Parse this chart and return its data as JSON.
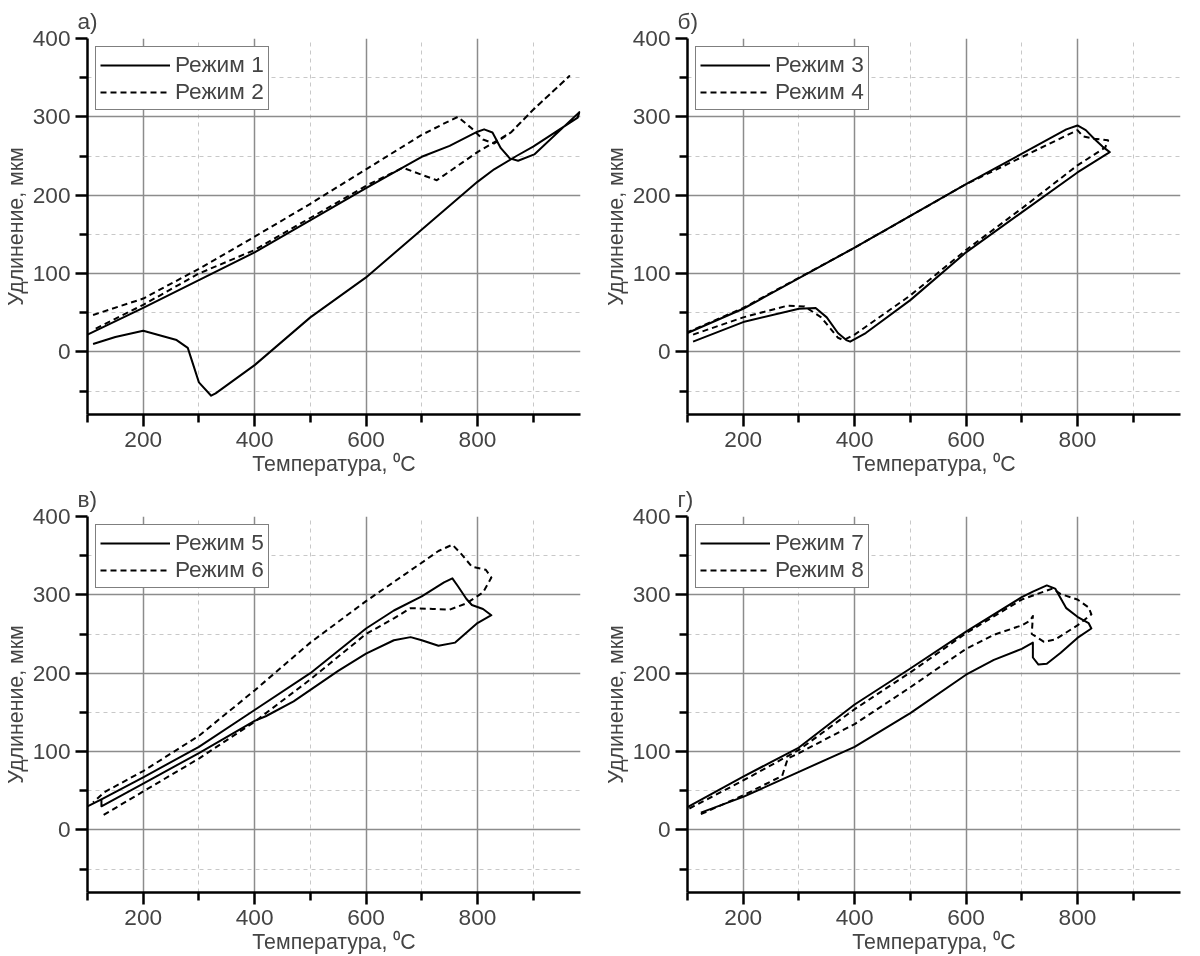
{
  "chart_data": [
    {
      "type": "line",
      "title": "а)",
      "xlabel": "Температура, ⁰C",
      "ylabel": "Удлинение, мкм",
      "xlim": [
        100,
        985
      ],
      "ylim": [
        -80,
        400
      ],
      "xticks": [
        {
          "value": 100,
          "label": null
        },
        200,
        {
          "value": 300,
          "label": null
        },
        400,
        {
          "value": 500,
          "label": null
        },
        600,
        {
          "value": 700,
          "label": null
        },
        800,
        {
          "value": 900,
          "label": null
        }
      ],
      "yticks": [
        {
          "value": -50,
          "label": null
        },
        0,
        {
          "value": 50,
          "label": null
        },
        100,
        {
          "value": 150,
          "label": null
        },
        200,
        {
          "value": 250,
          "label": null
        },
        300,
        {
          "value": 350,
          "label": null
        },
        400
      ],
      "grid": true,
      "legend": "top left",
      "series": [
        {
          "name": "Режим 1",
          "color": "#000000",
          "line_style": "solid",
          "x": [
            100,
            200,
            400,
            600,
            700,
            750,
            800,
            812,
            827,
            842,
            858,
            873,
            902,
            983,
            980,
            900,
            870,
            830,
            800,
            600,
            500,
            400,
            330,
            322,
            300,
            280,
            260,
            200,
            150,
            110
          ],
          "values": [
            22,
            56,
            127,
            209,
            249,
            263,
            281,
            284,
            280,
            260,
            247,
            244,
            252,
            306,
            299,
            262,
            250,
            233,
            217,
            95,
            44,
            -17,
            -53,
            -56,
            -39,
            5,
            15,
            27,
            19,
            10
          ]
        },
        {
          "name": "Режим 2",
          "color": "#000000",
          "line_style": "dashed",
          "x": [
            110,
            200,
            300,
            400,
            500,
            600,
            700,
            750,
            765,
            790,
            810,
            830,
            860,
            900,
            965,
            900,
            860,
            800,
            727,
            666,
            600,
            400,
            300,
            200,
            110
          ],
          "values": [
            47,
            68,
            106,
            147,
            189,
            233,
            277,
            295,
            300,
            285,
            271,
            266,
            280,
            309,
            352,
            309,
            280,
            255,
            219,
            235,
            212,
            130,
            100,
            60,
            28
          ]
        }
      ]
    },
    {
      "type": "line",
      "title": "б)",
      "xlabel": "Температура, ⁰C",
      "ylabel": "Удлинение, мкм",
      "xlim": [
        100,
        985
      ],
      "ylim": [
        -80,
        400
      ],
      "xticks": [
        {
          "value": 100,
          "label": null
        },
        200,
        {
          "value": 300,
          "label": null
        },
        400,
        {
          "value": 500,
          "label": null
        },
        600,
        {
          "value": 700,
          "label": null
        },
        800,
        {
          "value": 900,
          "label": null
        }
      ],
      "yticks": [
        {
          "value": -50,
          "label": null
        },
        0,
        {
          "value": 50,
          "label": null
        },
        100,
        {
          "value": 150,
          "label": null
        },
        200,
        {
          "value": 250,
          "label": null
        },
        300,
        {
          "value": 350,
          "label": null
        },
        400
      ],
      "grid": true,
      "legend": "top left",
      "series": [
        {
          "name": "Режим 3",
          "color": "#000000",
          "line_style": "solid",
          "x": [
            110,
            200,
            300,
            330,
            350,
            370,
            385,
            392,
            420,
            500,
            600,
            700,
            800,
            858,
            845,
            830,
            815,
            800,
            780,
            600,
            400,
            200,
            100
          ],
          "values": [
            13,
            38,
            55,
            56,
            44,
            24,
            15,
            13,
            24,
            66,
            127,
            178,
            229,
            255,
            262,
            272,
            283,
            289,
            284,
            214,
            133,
            55,
            24
          ]
        },
        {
          "name": "Режим 4",
          "color": "#000000",
          "line_style": "dashed",
          "x": [
            110,
            200,
            280,
            310,
            340,
            370,
            380,
            400,
            500,
            600,
            700,
            800,
            850,
            855,
            830,
            810,
            800,
            600,
            400,
            200,
            100
          ],
          "values": [
            22,
            44,
            59,
            58,
            44,
            18,
            15,
            22,
            72,
            130,
            183,
            238,
            261,
            270,
            272,
            275,
            283,
            214,
            133,
            56,
            25
          ]
        }
      ]
    },
    {
      "type": "line",
      "title": "в)",
      "xlabel": "Температура, ⁰C",
      "ylabel": "Удлинение, мкм",
      "xlim": [
        100,
        985
      ],
      "ylim": [
        -80,
        400
      ],
      "xticks": [
        {
          "value": 100,
          "label": null
        },
        200,
        {
          "value": 300,
          "label": null
        },
        400,
        {
          "value": 500,
          "label": null
        },
        600,
        {
          "value": 700,
          "label": null
        },
        800,
        {
          "value": 900,
          "label": null
        }
      ],
      "yticks": [
        {
          "value": -50,
          "label": null
        },
        0,
        {
          "value": 50,
          "label": null
        },
        100,
        {
          "value": 150,
          "label": null
        },
        200,
        {
          "value": 250,
          "label": null
        },
        300,
        {
          "value": 350,
          "label": null
        },
        400
      ],
      "grid": true,
      "legend": "top left",
      "series": [
        {
          "name": "Режим 5",
          "color": "#000000",
          "line_style": "solid",
          "x": [
            125,
            125,
            200,
            300,
            400,
            420,
            470,
            550,
            600,
            650,
            680,
            700,
            730,
            760,
            800,
            825,
            810,
            790,
            780,
            765,
            755,
            740,
            700,
            650,
            600,
            500,
            400,
            300,
            200,
            125,
            100
          ],
          "values": [
            39,
            30,
            59,
            98,
            139,
            145,
            164,
            203,
            225,
            242,
            246,
            242,
            235,
            239,
            264,
            274,
            282,
            287,
            295,
            311,
            321,
            316,
            298,
            280,
            257,
            200,
            153,
            106,
            67,
            39,
            30
          ]
        },
        {
          "name": "Режим 6",
          "color": "#000000",
          "line_style": "dashed",
          "x": [
            129,
            200,
            300,
            400,
            500,
            600,
            650,
            680,
            720,
            750,
            780,
            810,
            825,
            815,
            790,
            770,
            755,
            730,
            700,
            600,
            500,
            400,
            300,
            200,
            130,
            110
          ],
          "values": [
            19,
            49,
            91,
            138,
            192,
            250,
            270,
            283,
            282,
            281,
            289,
            303,
            322,
            332,
            336,
            353,
            364,
            356,
            341,
            292,
            239,
            178,
            120,
            75,
            48,
            35
          ]
        }
      ]
    },
    {
      "type": "line",
      "title": "г)",
      "xlabel": "Температура, ⁰C",
      "ylabel": "Удлинение, мкм",
      "xlim": [
        100,
        985
      ],
      "ylim": [
        -80,
        400
      ],
      "xticks": [
        {
          "value": 100,
          "label": null
        },
        200,
        {
          "value": 300,
          "label": null
        },
        400,
        {
          "value": 500,
          "label": null
        },
        600,
        {
          "value": 700,
          "label": null
        },
        800,
        {
          "value": 900,
          "label": null
        }
      ],
      "yticks": [
        {
          "value": -50,
          "label": null
        },
        0,
        {
          "value": 50,
          "label": null
        },
        100,
        {
          "value": 150,
          "label": null
        },
        200,
        {
          "value": 250,
          "label": null
        },
        300,
        {
          "value": 350,
          "label": null
        },
        400
      ],
      "grid": true,
      "legend": "top left",
      "series": [
        {
          "name": "Режим 7",
          "color": "#000000",
          "line_style": "solid",
          "x": [
            124,
            200,
            250,
            300,
            400,
            500,
            600,
            650,
            700,
            720,
            720,
            730,
            745,
            770,
            800,
            825,
            820,
            800,
            780,
            760,
            745,
            720,
            700,
            600,
            500,
            400,
            300,
            200,
            100
          ],
          "values": [
            22,
            42,
            58,
            74,
            106,
            149,
            198,
            217,
            231,
            239,
            220,
            211,
            212,
            226,
            245,
            257,
            264,
            272,
            283,
            308,
            312,
            304,
            297,
            253,
            206,
            160,
            105,
            68,
            29
          ]
        },
        {
          "name": "Режим 8",
          "color": "#000000",
          "line_style": "dashed",
          "x": [
            124,
            200,
            270,
            280,
            300,
            400,
            500,
            600,
            650,
            700,
            715,
            720,
            718,
            740,
            760,
            800,
            825,
            820,
            800,
            770,
            755,
            700,
            600,
            500,
            400,
            300,
            200,
            100
          ],
          "values": [
            20,
            44,
            69,
            91,
            98,
            135,
            182,
            231,
            249,
            261,
            267,
            273,
            250,
            240,
            243,
            261,
            275,
            284,
            294,
            301,
            308,
            294,
            251,
            201,
            154,
            102,
            63,
            26
          ]
        }
      ]
    }
  ]
}
